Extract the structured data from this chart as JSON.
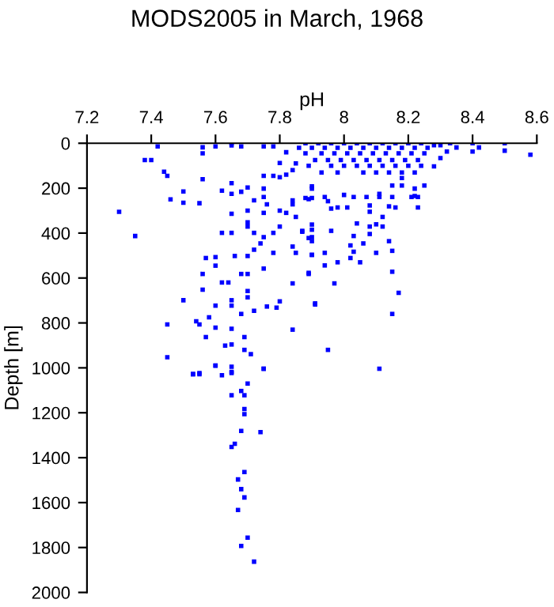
{
  "chart_data": {
    "type": "scatter",
    "title": "MODS2005 in March, 1968",
    "xlabel": "pH",
    "ylabel": "Depth [m]",
    "xlim": [
      7.2,
      8.6
    ],
    "xticks": [
      7.2,
      7.4,
      7.6,
      7.8,
      8,
      8.2,
      8.4,
      8.6
    ],
    "ylim": [
      2000,
      0
    ],
    "yticks": [
      0,
      200,
      400,
      600,
      800,
      1000,
      1200,
      1400,
      1600,
      1800,
      2000
    ],
    "grid": false,
    "marker": "square",
    "series": [
      {
        "color": "#0000ff",
        "x": [
          7.42,
          7.38,
          7.4,
          7.44,
          7.45,
          7.56,
          7.56,
          7.56,
          7.5,
          7.46,
          7.5,
          7.55,
          7.3,
          7.35,
          7.57,
          7.56,
          7.5,
          7.56,
          7.45,
          7.54,
          7.55,
          7.57,
          7.45,
          7.53,
          7.55,
          7.6,
          7.65,
          7.6,
          7.65,
          7.62,
          7.65,
          7.65,
          7.65,
          7.62,
          7.65,
          7.6,
          7.6,
          7.62,
          7.64,
          7.6,
          7.65,
          7.65,
          7.58,
          7.6,
          7.65,
          7.63,
          7.65,
          7.69,
          7.69,
          7.71,
          7.75,
          7.66,
          7.7,
          7.72,
          7.74,
          7.75,
          7.78,
          7.68,
          7.7,
          7.7,
          7.7,
          7.68,
          7.72,
          7.76,
          7.8,
          7.79,
          7.84,
          7.84,
          7.89,
          7.91,
          7.85,
          7.84,
          7.9,
          7.8,
          7.78,
          7.7,
          7.72,
          7.75,
          7.9,
          7.9,
          7.85,
          7.82,
          7.8,
          7.75,
          7.76,
          7.7,
          7.7,
          7.72,
          7.75,
          7.75,
          7.7,
          7.68,
          7.8,
          7.8,
          7.75,
          7.78,
          7.82,
          7.84,
          7.84,
          7.89,
          7.9,
          7.65,
          7.68,
          7.75,
          7.78,
          8.28,
          8.3,
          8.33,
          8.3,
          8.32,
          8.28,
          8.35,
          8.4,
          8.4,
          8.42,
          8.5,
          8.5,
          8.58,
          8.25,
          8.22,
          8.22,
          8.21,
          8.23,
          8.18,
          8.18,
          8.15,
          8.15,
          8.11,
          8.11,
          8.07,
          8.03,
          8.0,
          7.9,
          7.88,
          7.9,
          7.94,
          7.95,
          7.98,
          8.01,
          7.96,
          8.08,
          8.08,
          8.14,
          8.16,
          8.23,
          8.12,
          8.04,
          8.1,
          8.12,
          8.08,
          8.08,
          7.87,
          7.9,
          7.9,
          7.96,
          7.89,
          8.03,
          8.02,
          8.06,
          8.03,
          8.14,
          8.15,
          8.1,
          7.9,
          7.94,
          7.98,
          8.02,
          8.05,
          7.94,
          7.89,
          8.15,
          7.97,
          8.17,
          7.91,
          8.15,
          7.95,
          8.11,
          7.87,
          7.88,
          7.92,
          7.96,
          8.0,
          8.04,
          8.08,
          8.12,
          8.16,
          8.2,
          8.24,
          7.9,
          7.94,
          7.98,
          8.02,
          8.06,
          8.1,
          8.14,
          8.18,
          8.22,
          8.26,
          7.88,
          7.93,
          7.97,
          8.01,
          8.05,
          8.09,
          8.13,
          8.17,
          8.21,
          8.25,
          7.91,
          7.95,
          7.99,
          8.03,
          8.07,
          8.11,
          8.15,
          8.19,
          8.23,
          7.89,
          7.96,
          8.0,
          8.04,
          8.08,
          8.12,
          8.16,
          8.2,
          8.24,
          7.93,
          7.98,
          8.06,
          8.1,
          8.14,
          8.18,
          8.22,
          7.82,
          7.85,
          7.86,
          7.84,
          7.6,
          7.65,
          7.53,
          7.55,
          7.62,
          7.65,
          7.75,
          7.7,
          7.68,
          7.69,
          7.65,
          7.69,
          7.69,
          7.68,
          7.74,
          7.66,
          7.65,
          7.69,
          7.67,
          7.68,
          7.69,
          7.67,
          7.7,
          7.68,
          7.72
        ],
        "values": [
          14,
          75,
          75,
          127,
          145,
          18,
          45,
          160,
          215,
          250,
          265,
          267,
          305,
          413,
          511,
          582,
          699,
          652,
          807,
          793,
          807,
          863,
          953,
          1028,
          1028,
          990,
          1018,
          14,
          10,
          211,
          225,
          178,
          314,
          399,
          399,
          507,
          545,
          620,
          620,
          723,
          699,
          723,
          775,
          821,
          826,
          901,
          896,
          863,
          920,
          939,
          1004,
          502,
          502,
          474,
          446,
          558,
          488,
          582,
          582,
          686,
          658,
          760,
          746,
          727,
          704,
          732,
          624,
          830,
          582,
          713,
          488,
          460,
          497,
          371,
          399,
          371,
          399,
          418,
          418,
          362,
          328,
          310,
          300,
          310,
          272,
          352,
          300,
          254,
          202,
          239,
          197,
          216,
          151,
          88,
          145,
          145,
          140,
          254,
          272,
          249,
          192,
          0,
          14,
          14,
          14,
          9,
          9,
          0,
          66,
          37,
          103,
          19,
          0,
          37,
          19,
          0,
          33,
          51,
          188,
          202,
          235,
          239,
          239,
          188,
          155,
          188,
          239,
          225,
          239,
          239,
          239,
          230,
          202,
          244,
          244,
          239,
          258,
          286,
          286,
          291,
          277,
          305,
          281,
          286,
          286,
          328,
          357,
          361,
          371,
          371,
          404,
          390,
          385,
          436,
          390,
          422,
          413,
          455,
          446,
          483,
          436,
          479,
          488,
          497,
          488,
          530,
          511,
          530,
          544,
          577,
          572,
          624,
          666,
          718,
          760,
          920,
          1004,
          394,
          0,
          0,
          0,
          0,
          0,
          0,
          0,
          0,
          0,
          0,
          20,
          20,
          20,
          20,
          20,
          20,
          20,
          20,
          20,
          20,
          45,
          45,
          45,
          45,
          45,
          45,
          45,
          45,
          45,
          45,
          75,
          75,
          75,
          75,
          75,
          75,
          75,
          75,
          75,
          100,
          100,
          100,
          100,
          100,
          100,
          100,
          100,
          100,
          130,
          130,
          130,
          130,
          130,
          130,
          130,
          40,
          90,
          20,
          120,
          990,
          995,
          1028,
          1023,
          1033,
          1023,
          1004,
          1070,
          1103,
          1122,
          1122,
          1183,
          1206,
          1281,
          1286,
          1338,
          1352,
          1464,
          1497,
          1540,
          1577,
          1633,
          1756,
          1793,
          1863
        ]
      }
    ]
  }
}
